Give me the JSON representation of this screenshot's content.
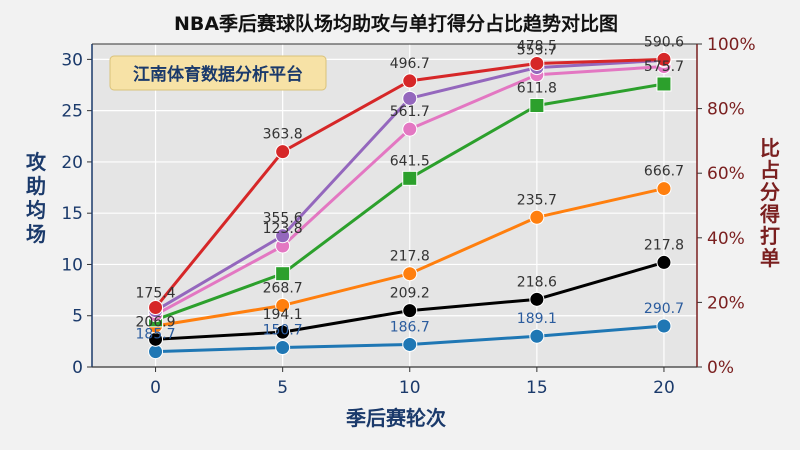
{
  "chart_data": {
    "type": "line",
    "title": "NBA季后赛球队场均助攻与单打得分占比趋势对比图",
    "watermark": "江南体育数据分析平台",
    "xlabel": "季后赛轮次",
    "ylabel_left": "攻助均场",
    "ylabel_right": "比占分得打单",
    "x": [
      0,
      5,
      10,
      15,
      20
    ],
    "x_ticks": [
      "0",
      "5",
      "10",
      "15",
      "20"
    ],
    "y_left_ticks": [
      "0",
      "5",
      "10",
      "15",
      "20",
      "25",
      "30"
    ],
    "y_right_ticks": [
      "0%",
      "20%",
      "40%",
      "60%",
      "80%",
      "100%"
    ],
    "xlim": [
      -2.5,
      21.3
    ],
    "ylim_left": [
      0,
      31.5
    ],
    "ylim_right": [
      0,
      100
    ],
    "grid": true,
    "colors": {
      "background": "#f2f2f2",
      "plot_background": "#e5e5e5",
      "left_axis": "#1b3a6b",
      "right_axis": "#7a1f1f",
      "grid": "#ffffff"
    },
    "series": [
      {
        "color": "#1f77b4",
        "marker": "circle",
        "values": [
          1.5,
          1.9,
          2.2,
          3.0,
          4.0
        ],
        "labels": [
          "185.7",
          "150.7",
          "186.7",
          "189.1",
          "290.7"
        ],
        "label_color": "#2b5c9e"
      },
      {
        "color": "#000000",
        "marker": "circle",
        "values": [
          2.7,
          3.4,
          5.5,
          6.6,
          10.2
        ],
        "labels": [
          "206.9",
          "194.1",
          "209.2",
          "218.6",
          "217.8"
        ],
        "label_color": "#333333"
      },
      {
        "color": "#ff7f0e",
        "marker": "circle",
        "values": [
          4.0,
          6.0,
          9.1,
          14.6,
          17.4
        ],
        "labels": [
          "",
          "268.7",
          "217.8",
          "235.7",
          "666.7"
        ],
        "label_color": "#333333"
      },
      {
        "color": "#2ca02c",
        "marker": "square",
        "values": [
          4.6,
          9.1,
          18.4,
          25.5,
          27.6
        ],
        "labels": [
          "",
          "",
          "641.5",
          "611.8",
          "575.7"
        ],
        "label_color": "#333333"
      },
      {
        "color": "#e377c2",
        "marker": "circle",
        "values": [
          5.1,
          11.8,
          23.2,
          28.5,
          29.3
        ],
        "labels": [
          "",
          "123.8",
          "561.7",
          "",
          ""
        ],
        "label_color": "#333333"
      },
      {
        "color": "#9467bd",
        "marker": "circle",
        "values": [
          5.5,
          12.8,
          26.2,
          29.2,
          29.9
        ],
        "labels": [
          "175.4",
          "355.6",
          "",
          "553.7",
          ""
        ],
        "label_color": "#333333"
      },
      {
        "color": "#d62728",
        "marker": "circle",
        "values": [
          5.8,
          21.0,
          27.9,
          29.6,
          30.0
        ],
        "labels": [
          "",
          "363.8",
          "496.7",
          "478.5",
          "590.6"
        ],
        "label_color": "#333333"
      }
    ]
  }
}
